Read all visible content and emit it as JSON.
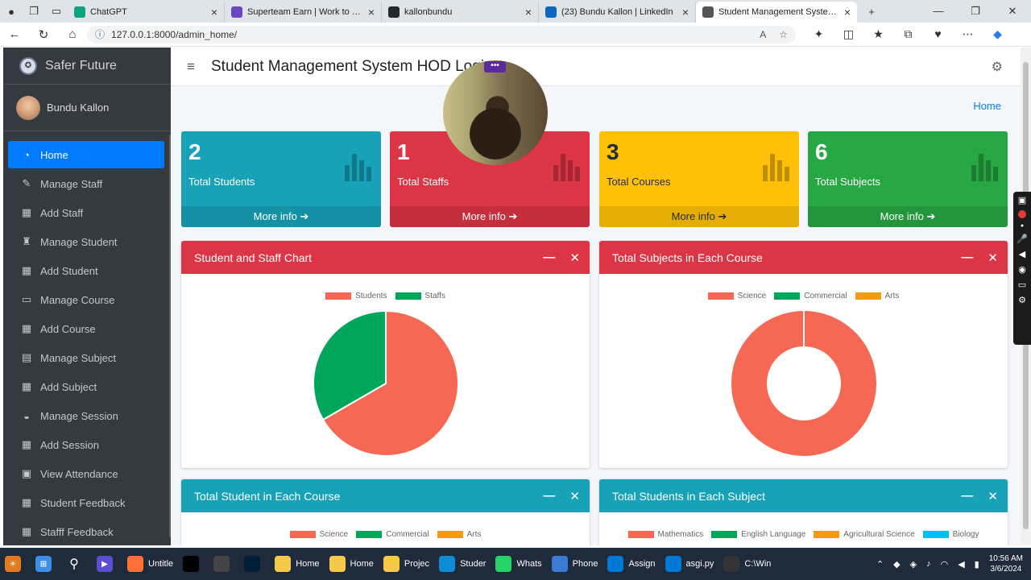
{
  "browser": {
    "tabs": [
      {
        "title": "ChatGPT",
        "icon": "chatgpt-icon",
        "color": "#10a37f"
      },
      {
        "title": "Superteam Earn | Work to Earn in",
        "icon": "superteam-icon",
        "color": "#6b46c1"
      },
      {
        "title": "kallonbundu",
        "icon": "github-icon",
        "color": "#24292e"
      },
      {
        "title": "(23) Bundu Kallon | LinkedIn",
        "icon": "linkedin-icon",
        "color": "#0a66c2"
      },
      {
        "title": "Student Management System | D",
        "icon": "globe-icon",
        "color": "#555555"
      }
    ],
    "url": "127.0.0.1:8000/admin_home/"
  },
  "sidebar": {
    "brand": "Safer Future",
    "user": "Bundu Kallon",
    "items": [
      {
        "label": "Home",
        "icon": "dashboard-icon",
        "glyph": "◔"
      },
      {
        "label": "Manage Staff",
        "icon": "user-edit-icon",
        "glyph": "✎"
      },
      {
        "label": "Add Staff",
        "icon": "grid-icon",
        "glyph": "▦"
      },
      {
        "label": "Manage Student",
        "icon": "graduate-icon",
        "glyph": "♜"
      },
      {
        "label": "Add Student",
        "icon": "grid-icon",
        "glyph": "▦"
      },
      {
        "label": "Manage Course",
        "icon": "laptop-icon",
        "glyph": "▭"
      },
      {
        "label": "Add Course",
        "icon": "grid-icon",
        "glyph": "▦"
      },
      {
        "label": "Manage Subject",
        "icon": "book-icon",
        "glyph": "▤"
      },
      {
        "label": "Add Subject",
        "icon": "grid-icon",
        "glyph": "▦"
      },
      {
        "label": "Manage Session",
        "icon": "graduation-cap-icon",
        "glyph": "◒"
      },
      {
        "label": "Add Session",
        "icon": "grid-icon",
        "glyph": "▦"
      },
      {
        "label": "View Attendance",
        "icon": "calendar-icon",
        "glyph": "▣"
      },
      {
        "label": "Student Feedback",
        "icon": "grid-icon",
        "glyph": "▦"
      },
      {
        "label": "Stafff Feedback",
        "icon": "grid-icon",
        "glyph": "▦"
      }
    ]
  },
  "header": {
    "title": "Student Management System HOD Logi",
    "breadcrumb": "Home"
  },
  "stats": [
    {
      "value": "2",
      "label": "Total Students",
      "more": "More info",
      "color": "#17a2b8"
    },
    {
      "value": "1",
      "label": "Total Staffs",
      "more": "More info",
      "color": "#dc3545"
    },
    {
      "value": "3",
      "label": "Total Courses",
      "more": "More info",
      "color": "#ffc107"
    },
    {
      "value": "6",
      "label": "Total Subjects",
      "more": "More info",
      "color": "#28a745"
    }
  ],
  "cards": [
    {
      "title": "Student and Staff Chart",
      "color": "#dc3545"
    },
    {
      "title": "Total Subjects in Each Course",
      "color": "#dc3545"
    },
    {
      "title": "Total Student in Each Course",
      "color": "#17a2b8"
    },
    {
      "title": "Total Students in Each Subject",
      "color": "#17a2b8"
    }
  ],
  "chart_data": [
    {
      "type": "pie",
      "categories": [
        "Students",
        "Staffs"
      ],
      "values": [
        2,
        1
      ],
      "colors": [
        "#f56954",
        "#00a65a"
      ],
      "legend": "top"
    },
    {
      "type": "pie",
      "variant": "doughnut",
      "categories": [
        "Science",
        "Commercial",
        "Arts"
      ],
      "values": [
        1,
        0,
        0
      ],
      "colors": [
        "#f56954",
        "#00a65a",
        "#f39c12"
      ],
      "legend": "top"
    },
    {
      "type": "pie",
      "categories": [
        "Science",
        "Commercial",
        "Arts"
      ],
      "colors": [
        "#f56954",
        "#00a65a",
        "#f39c12"
      ],
      "legend": "top"
    },
    {
      "type": "pie",
      "categories": [
        "Mathematics",
        "English Language",
        "Agricultural Science",
        "Biology"
      ],
      "colors": [
        "#f56954",
        "#00a65a",
        "#f39c12",
        "#00c0ef"
      ],
      "legend": "top"
    }
  ],
  "taskbar": {
    "items": [
      {
        "label": "Untitle",
        "icon": "firefox-icon",
        "color": "#ff7139"
      },
      {
        "label": "",
        "icon": "tiktok-icon",
        "color": "#000000"
      },
      {
        "label": "",
        "icon": "calculator-icon",
        "color": "#444444"
      },
      {
        "label": "",
        "icon": "photoshop-icon",
        "color": "#001e36"
      },
      {
        "label": "Home",
        "icon": "folder-icon",
        "color": "#f7c948"
      },
      {
        "label": "Home",
        "icon": "folder-icon",
        "color": "#f7c948"
      },
      {
        "label": "Projec",
        "icon": "folder-icon",
        "color": "#f7c948"
      },
      {
        "label": "Studer",
        "icon": "edge-icon",
        "color": "#0c8dd6"
      },
      {
        "label": "Whats",
        "icon": "whatsapp-icon",
        "color": "#25d366"
      },
      {
        "label": "Phone",
        "icon": "phone-link-icon",
        "color": "#3a7bd5"
      },
      {
        "label": "Assign",
        "icon": "vscode-icon",
        "color": "#0078d4"
      },
      {
        "label": "asgi.py",
        "icon": "vscode-icon",
        "color": "#0078d4"
      },
      {
        "label": "C:\\Win",
        "icon": "terminal-icon",
        "color": "#333333"
      }
    ],
    "time": "10:56 AM",
    "date": "3/6/2024"
  }
}
